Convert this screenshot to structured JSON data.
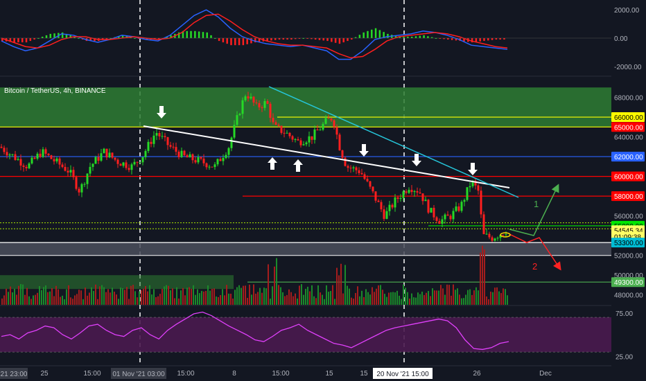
{
  "chart_data": {
    "type": "candlestick",
    "title": "Bitcoin / TetherUS, 4h, BINANCE",
    "price_axis": {
      "ticks": [
        "68000.00",
        "64000.00",
        "56000.00",
        "52000.00",
        "50000.00",
        "48000.00"
      ],
      "ylim": [
        47000,
        70000
      ]
    },
    "level_badges": [
      {
        "label": "66000.00",
        "price": 66000,
        "bg": "#ffff00",
        "fg": "#000000"
      },
      {
        "label": "65000.00",
        "price": 65000,
        "bg": "#ff0000",
        "fg": "#ffffff"
      },
      {
        "label": "62000.00",
        "price": 62000,
        "bg": "#2962ff",
        "fg": "#ffffff"
      },
      {
        "label": "60000.00",
        "price": 60000,
        "bg": "#ff0000",
        "fg": "#ffffff"
      },
      {
        "label": "58000.00",
        "price": 58000,
        "bg": "#ff0000",
        "fg": "#ffffff"
      },
      {
        "label": "55000.00",
        "price": 55000,
        "bg": "#00e600",
        "fg": "#000000"
      },
      {
        "label": "54545.34",
        "price": 54545.34,
        "bg": "#ffff66",
        "fg": "#000000"
      },
      {
        "label": "01:09:38",
        "price": 53900,
        "bg": "#ffff66",
        "fg": "#000000"
      },
      {
        "label": "53300.00",
        "price": 53300,
        "bg": "#00bcd4",
        "fg": "#000000"
      },
      {
        "label": "49300.00",
        "price": 49300,
        "bg": "#4caf50",
        "fg": "#ffffff"
      }
    ],
    "zones": [
      {
        "from": 65000,
        "to": 69000,
        "color": "#2e7d32"
      },
      {
        "from": 52000,
        "to": 53300,
        "color": "#4b4f5c"
      }
    ],
    "macd": {
      "ticks": [
        "2000.00",
        "0.00",
        "-2000.00"
      ],
      "ylim": [
        -2600,
        2600
      ],
      "macd_line": [
        -200,
        -600,
        -900,
        -700,
        -200,
        300,
        200,
        -100,
        -300,
        -100,
        200,
        100,
        -100,
        -200,
        200,
        900,
        1600,
        2000,
        1500,
        700,
        100,
        -200,
        -400,
        -500,
        -600,
        -500,
        -700,
        -900,
        -1500,
        -1500,
        -900,
        -100,
        100,
        200,
        300,
        500,
        400,
        200,
        -100,
        -500,
        -600,
        -700,
        -800
      ],
      "signal_line": [
        0,
        -300,
        -600,
        -700,
        -500,
        -100,
        100,
        100,
        -100,
        -100,
        0,
        100,
        0,
        -100,
        0,
        400,
        1100,
        1600,
        1700,
        1200,
        600,
        100,
        -200,
        -400,
        -500,
        -500,
        -600,
        -700,
        -1100,
        -1400,
        -1300,
        -800,
        -200,
        100,
        200,
        300,
        400,
        300,
        100,
        -200,
        -400,
        -600,
        -700
      ]
    },
    "rsi": {
      "ticks": [
        "75.00",
        "25.00"
      ],
      "ylim": [
        15,
        82
      ],
      "band": [
        30,
        70
      ],
      "values": [
        48,
        50,
        45,
        52,
        55,
        60,
        58,
        50,
        45,
        52,
        60,
        62,
        55,
        50,
        48,
        55,
        58,
        50,
        45,
        55,
        62,
        68,
        74,
        76,
        72,
        66,
        60,
        55,
        50,
        44,
        42,
        48,
        55,
        58,
        62,
        55,
        50,
        45,
        40,
        38,
        35,
        40,
        45,
        50,
        55,
        58,
        60,
        62,
        64,
        66,
        68,
        66,
        58,
        44,
        34,
        33,
        35,
        40,
        42
      ]
    },
    "x_ticks": [
      "25",
      "15:00",
      "Nov",
      "15:00",
      "8",
      "15:00",
      "15",
      "15",
      "20 Nov '21",
      "15:00",
      "26",
      "Dec"
    ],
    "x_badges": [
      "21 23:00",
      "01 Nov '21 03:00",
      "20 Nov '21   15:00"
    ],
    "annotations": {
      "scenario_1": "1",
      "scenario_2": "2",
      "arrows": "down arrows at local highs, up arrows at local lows"
    },
    "volume": "histogram, green and red bars"
  }
}
